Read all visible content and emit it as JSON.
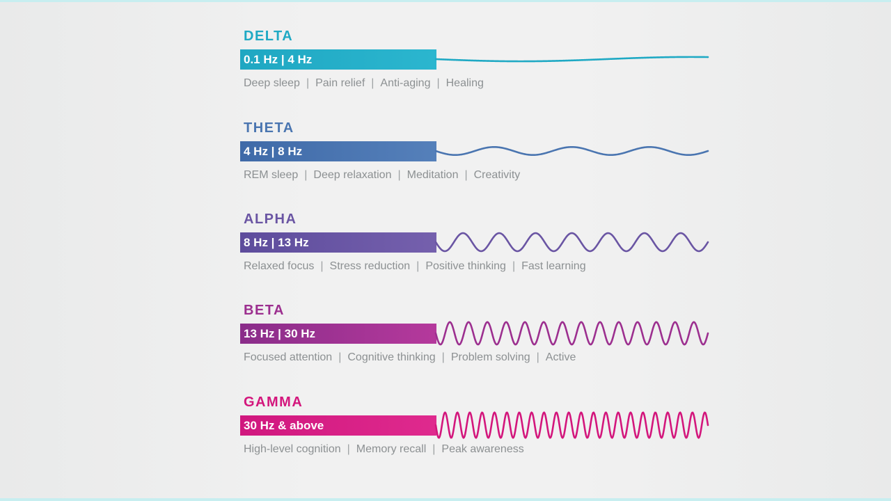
{
  "bands": [
    {
      "name": "DELTA",
      "range": "0.1 Hz | 4 Hz",
      "effects": [
        "Deep sleep",
        "Pain relief",
        "Anti-aging",
        "Healing"
      ],
      "color": "#1fa9c4",
      "bar_gradient": [
        "#1fa7c2",
        "#2bb6cf"
      ],
      "wave": {
        "cycles": 0.8,
        "amplitude": 0.12
      }
    },
    {
      "name": "THETA",
      "range": "4 Hz | 8 Hz",
      "effects": [
        "REM sleep",
        "Deep relaxation",
        "Meditation",
        "Creativity"
      ],
      "color": "#4a75b0",
      "bar_gradient": [
        "#3f6aa8",
        "#5580ba"
      ],
      "wave": {
        "cycles": 3.5,
        "amplitude": 0.22
      }
    },
    {
      "name": "ALPHA",
      "range": "8 Hz | 13 Hz",
      "effects": [
        "Relaxed focus",
        "Stress reduction",
        "Positive thinking",
        "Fast learning"
      ],
      "color": "#6a55a3",
      "bar_gradient": [
        "#5d4c9c",
        "#7560ad"
      ],
      "wave": {
        "cycles": 7.5,
        "amplitude": 0.5
      }
    },
    {
      "name": "BETA",
      "range": "13 Hz | 30 Hz",
      "effects": [
        "Focused attention",
        "Cognitive thinking",
        "Problem solving",
        "Active"
      ],
      "color": "#9c2f8f",
      "bar_gradient": [
        "#8a2d8a",
        "#b5399c"
      ],
      "wave": {
        "cycles": 14.5,
        "amplitude": 0.62
      }
    },
    {
      "name": "GAMMA",
      "range": "30 Hz & above",
      "effects": [
        "High-level cognition",
        "Memory recall",
        "Peak awareness"
      ],
      "color": "#d3167c",
      "bar_gradient": [
        "#d0177e",
        "#df2a8e"
      ],
      "wave": {
        "cycles": 22,
        "amplitude": 0.7
      }
    }
  ]
}
